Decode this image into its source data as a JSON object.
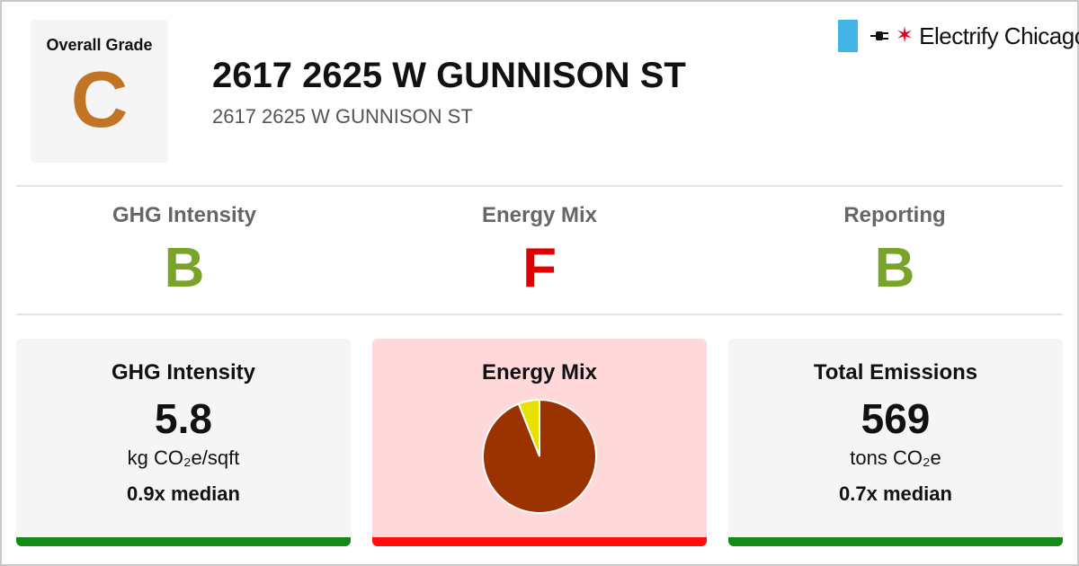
{
  "header": {
    "overall_label": "Overall Grade",
    "overall_grade": "C",
    "title": "2617 2625 W GUNNISON ST",
    "subtitle": "2617 2625 W GUNNISON ST"
  },
  "logo": {
    "name": "Electrify Chicago",
    "icons": [
      "flag-bar-icon",
      "plug-icon",
      "star-icon"
    ]
  },
  "subgrades": [
    {
      "label": "GHG Intensity",
      "grade": "B",
      "color": "#7aa32a"
    },
    {
      "label": "Energy Mix",
      "grade": "F",
      "color": "#e00000"
    },
    {
      "label": "Reporting",
      "grade": "B",
      "color": "#7aa32a"
    }
  ],
  "cards": {
    "ghg": {
      "title": "GHG Intensity",
      "value": "5.8",
      "unit": "kg CO₂e/sqft",
      "median": "0.9x median",
      "bar_color": "#168a16",
      "bg": "#f5f5f5"
    },
    "energy": {
      "title": "Energy Mix",
      "bar_color": "#ff0c0c",
      "bg": "#ffd9d9"
    },
    "total": {
      "title": "Total Emissions",
      "value": "569",
      "unit": "tons CO₂e",
      "median": "0.7x median",
      "bar_color": "#168a16",
      "bg": "#f5f5f5"
    }
  },
  "chart_data": {
    "type": "pie",
    "slices": [
      {
        "share": 0.94,
        "color": "#9a3300"
      },
      {
        "share": 0.06,
        "color": "#e8e000"
      }
    ],
    "title": "",
    "legend": "none"
  },
  "colors": {
    "overall_grade": "#c07424",
    "border": "#c8c8c8",
    "divider": "#e4e4e4"
  }
}
